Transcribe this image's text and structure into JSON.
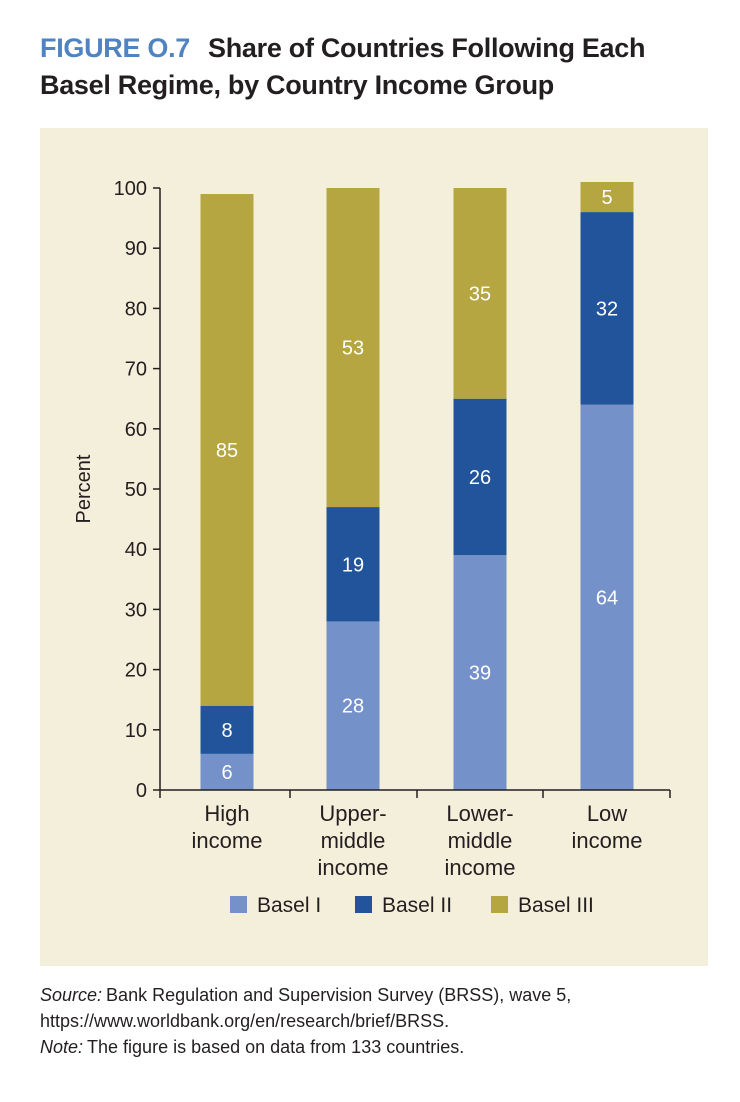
{
  "figure": {
    "label": "FIGURE O.7",
    "title": "Share of Countries Following Each Basel Regime, by Country Income Group"
  },
  "chart_data": {
    "type": "bar",
    "stacked": true,
    "ylabel": "Percent",
    "ylim": [
      0,
      100
    ],
    "yticks": [
      0,
      10,
      20,
      30,
      40,
      50,
      60,
      70,
      80,
      90,
      100
    ],
    "categories": [
      [
        "High",
        "income"
      ],
      [
        "Upper-",
        "middle",
        "income"
      ],
      [
        "Lower-",
        "middle",
        "income"
      ],
      [
        "Low",
        "income"
      ]
    ],
    "series": [
      {
        "name": "Basel I",
        "color": "#7591c9",
        "values": [
          6,
          28,
          39,
          64
        ]
      },
      {
        "name": "Basel II",
        "color": "#21549a",
        "values": [
          8,
          19,
          26,
          32
        ]
      },
      {
        "name": "Basel III",
        "color": "#b5a642",
        "values": [
          85,
          53,
          35,
          5
        ]
      }
    ],
    "legend_position": "bottom",
    "grid": false
  },
  "notes": {
    "source_label": "Source:",
    "source_text": "Bank Regulation and Supervision Survey (BRSS), wave 5, https://www.worldbank.org/en/research/brief/BRSS.",
    "note_label": "Note:",
    "note_text": "The figure is based on data from 133 countries."
  }
}
